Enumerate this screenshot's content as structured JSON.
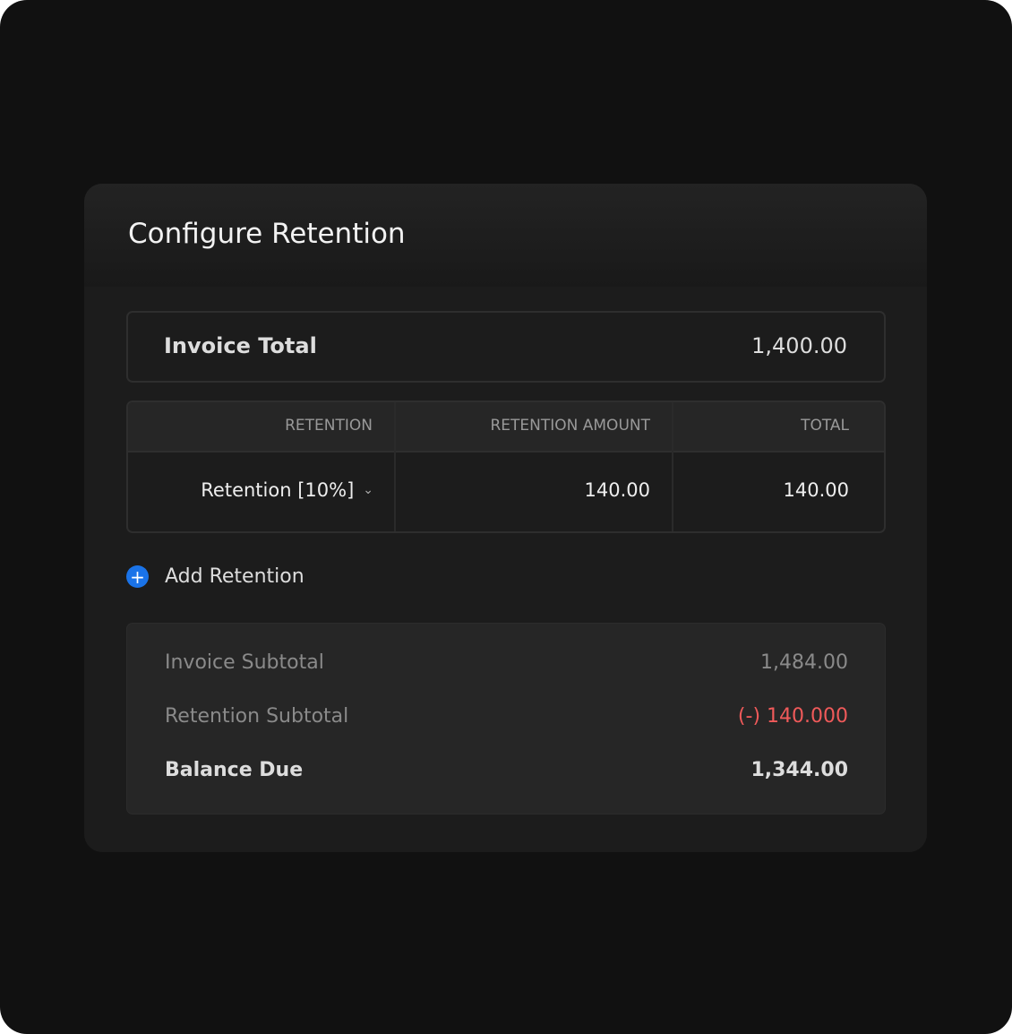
{
  "dialog": {
    "title": "Configure Retention"
  },
  "invoice_total": {
    "label": "Invoice Total",
    "value": "1,400.00"
  },
  "table": {
    "headers": [
      "RETENTION",
      "RETENTION AMOUNT",
      "TOTAL"
    ],
    "rows": [
      {
        "retention": "Retention [10%]",
        "amount": "140.00",
        "total": "140.00"
      }
    ]
  },
  "add_retention": {
    "label": "Add Retention",
    "icon": "plus-circle-icon",
    "color": "#1a73e8"
  },
  "summary": {
    "invoice_subtotal": {
      "label": "Invoice Subtotal",
      "value": "1,484.00"
    },
    "retention_subtotal": {
      "label": "Retention Subtotal",
      "value": "(-) 140.000",
      "color": "#f05a5a"
    },
    "balance_due": {
      "label": "Balance Due",
      "value": "1,344.00"
    }
  }
}
